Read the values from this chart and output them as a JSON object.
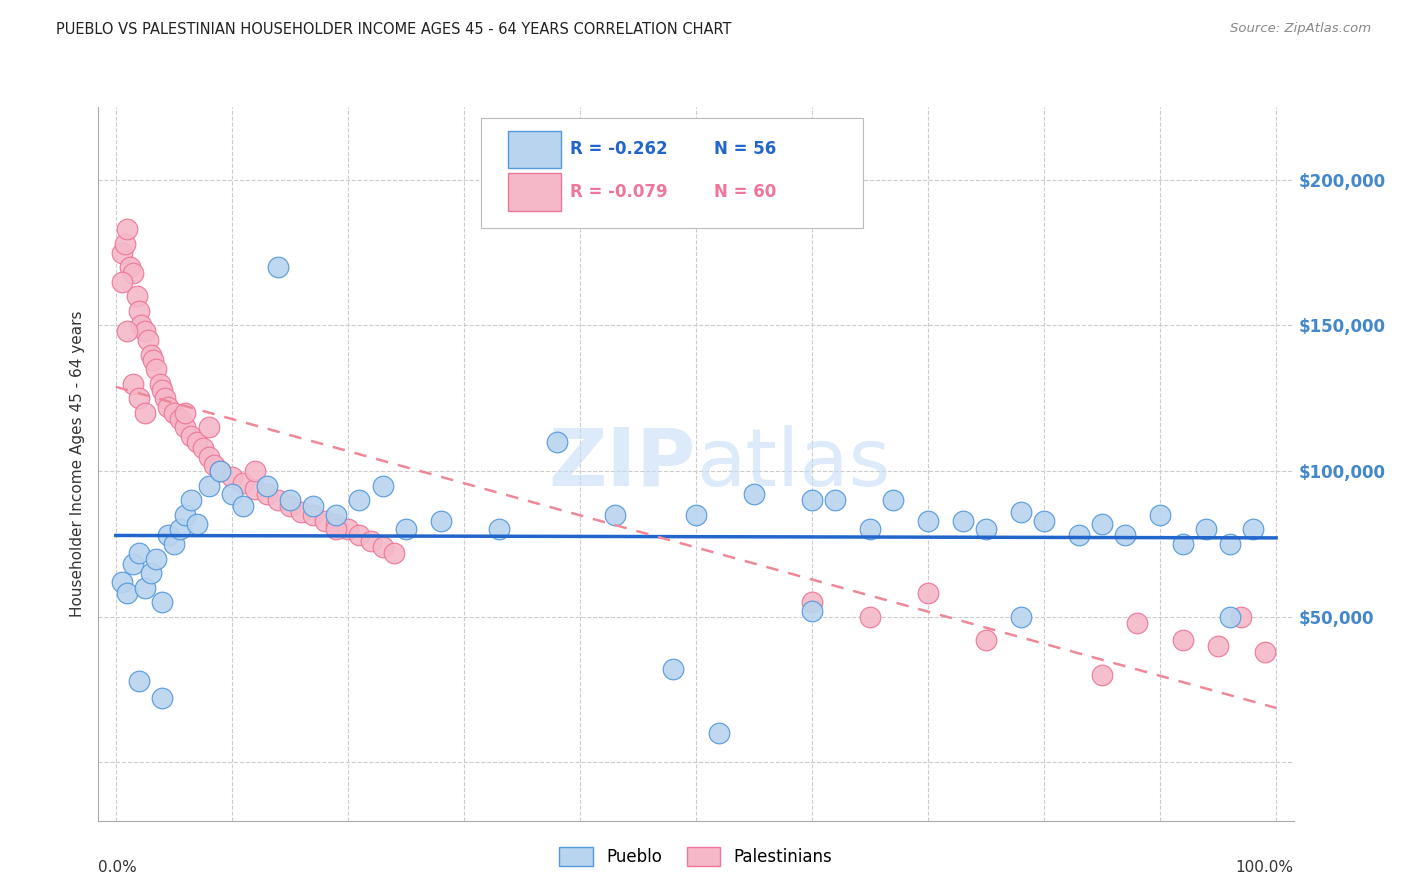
{
  "title": "PUEBLO VS PALESTINIAN HOUSEHOLDER INCOME AGES 45 - 64 YEARS CORRELATION CHART",
  "source": "Source: ZipAtlas.com",
  "ylabel": "Householder Income Ages 45 - 64 years",
  "pueblo_color": "#b8d4ee",
  "palestinian_color": "#f4b8c8",
  "pueblo_edge_color": "#5599dd",
  "palestinian_edge_color": "#ee7799",
  "pueblo_line_color": "#2266cc",
  "palestinian_line_color": "#ee8899",
  "ytick_values": [
    0,
    50000,
    100000,
    150000,
    200000
  ],
  "ymax": 225000,
  "ymin": -20000,
  "xmin": -0.015,
  "xmax": 1.015,
  "pueblo_r": "-0.262",
  "pueblo_n": "56",
  "palestinian_r": "-0.079",
  "palestinian_n": "60",
  "pueblo_x": [
    0.005,
    0.01,
    0.015,
    0.02,
    0.025,
    0.03,
    0.035,
    0.04,
    0.045,
    0.05,
    0.055,
    0.06,
    0.065,
    0.07,
    0.08,
    0.09,
    0.1,
    0.11,
    0.13,
    0.15,
    0.17,
    0.19,
    0.21,
    0.23,
    0.28,
    0.33,
    0.38,
    0.43,
    0.5,
    0.55,
    0.6,
    0.62,
    0.65,
    0.67,
    0.7,
    0.73,
    0.75,
    0.78,
    0.8,
    0.83,
    0.85,
    0.87,
    0.9,
    0.92,
    0.94,
    0.96,
    0.98,
    0.02,
    0.04,
    0.14,
    0.25,
    0.48,
    0.52,
    0.6,
    0.78,
    0.96
  ],
  "pueblo_y": [
    62000,
    58000,
    68000,
    72000,
    60000,
    65000,
    70000,
    55000,
    78000,
    75000,
    80000,
    85000,
    90000,
    82000,
    95000,
    100000,
    92000,
    88000,
    95000,
    90000,
    88000,
    85000,
    90000,
    95000,
    83000,
    80000,
    110000,
    85000,
    85000,
    92000,
    90000,
    90000,
    80000,
    90000,
    83000,
    83000,
    80000,
    86000,
    83000,
    78000,
    82000,
    78000,
    85000,
    75000,
    80000,
    75000,
    80000,
    28000,
    22000,
    170000,
    80000,
    32000,
    10000,
    52000,
    50000,
    50000
  ],
  "palestinian_x": [
    0.005,
    0.008,
    0.01,
    0.012,
    0.015,
    0.018,
    0.02,
    0.022,
    0.025,
    0.028,
    0.03,
    0.032,
    0.035,
    0.038,
    0.04,
    0.042,
    0.045,
    0.05,
    0.055,
    0.06,
    0.065,
    0.07,
    0.075,
    0.08,
    0.085,
    0.09,
    0.1,
    0.11,
    0.12,
    0.13,
    0.14,
    0.15,
    0.16,
    0.17,
    0.18,
    0.19,
    0.2,
    0.21,
    0.22,
    0.23,
    0.005,
    0.01,
    0.015,
    0.02,
    0.025,
    0.06,
    0.08,
    0.12,
    0.19,
    0.24,
    0.6,
    0.65,
    0.7,
    0.75,
    0.85,
    0.88,
    0.92,
    0.95,
    0.97,
    0.99
  ],
  "palestinian_y": [
    175000,
    178000,
    183000,
    170000,
    168000,
    160000,
    155000,
    150000,
    148000,
    145000,
    140000,
    138000,
    135000,
    130000,
    128000,
    125000,
    122000,
    120000,
    118000,
    115000,
    112000,
    110000,
    108000,
    105000,
    102000,
    100000,
    98000,
    96000,
    94000,
    92000,
    90000,
    88000,
    86000,
    85000,
    83000,
    82000,
    80000,
    78000,
    76000,
    74000,
    165000,
    148000,
    130000,
    125000,
    120000,
    120000,
    115000,
    100000,
    80000,
    72000,
    55000,
    50000,
    58000,
    42000,
    30000,
    48000,
    42000,
    40000,
    50000,
    38000
  ]
}
